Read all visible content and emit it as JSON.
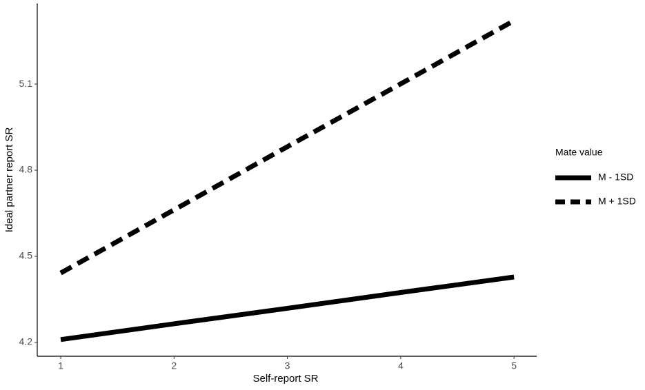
{
  "chart_data": {
    "type": "line",
    "x_label": "Self-report SR",
    "y_label": "Ideal partner report SR",
    "x": [
      1,
      2,
      3,
      4,
      5
    ],
    "xlim": [
      0.793,
      5.2
    ],
    "xticks": [
      1,
      2,
      3,
      4,
      5
    ],
    "ylim": [
      4.152,
      5.381
    ],
    "yticks": [
      4.2,
      4.5,
      4.8,
      5.1
    ],
    "grid": false,
    "legend": "right",
    "legend_title": "Mate value",
    "series": [
      {
        "name": "M - 1SD",
        "color": "#000000",
        "linestyle": "solid",
        "values": [
          4.21,
          4.265,
          4.319,
          4.374,
          4.428
        ]
      },
      {
        "name": "M + 1SD",
        "color": "#000000",
        "linestyle": "dashed",
        "values": [
          4.442,
          4.662,
          4.882,
          5.101,
          5.321
        ]
      }
    ]
  }
}
